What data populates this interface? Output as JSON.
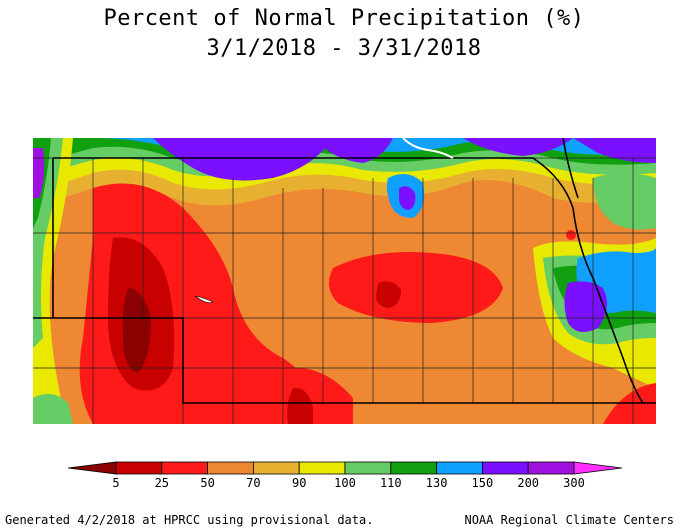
{
  "title": {
    "line1": "Percent of Normal Precipitation (%)",
    "line2": "3/1/2018 - 3/31/2018"
  },
  "legend": {
    "bins": [
      {
        "color": "#8b0000"
      },
      {
        "color": "#c80000"
      },
      {
        "color": "#ff1a1a"
      },
      {
        "color": "#ee8833"
      },
      {
        "color": "#e8b030"
      },
      {
        "color": "#e8e800"
      },
      {
        "color": "#66cc66"
      },
      {
        "color": "#10a010"
      },
      {
        "color": "#10a0ff"
      },
      {
        "color": "#7a10ff"
      },
      {
        "color": "#a010e0"
      },
      {
        "color": "#ff30ff"
      }
    ],
    "labels": [
      "5",
      "25",
      "50",
      "70",
      "90",
      "100",
      "110",
      "130",
      "150",
      "200",
      "300"
    ]
  },
  "footer": {
    "left": "Generated 4/2/2018 at HPRCC using provisional data.",
    "right": "NOAA Regional Climate Centers"
  }
}
